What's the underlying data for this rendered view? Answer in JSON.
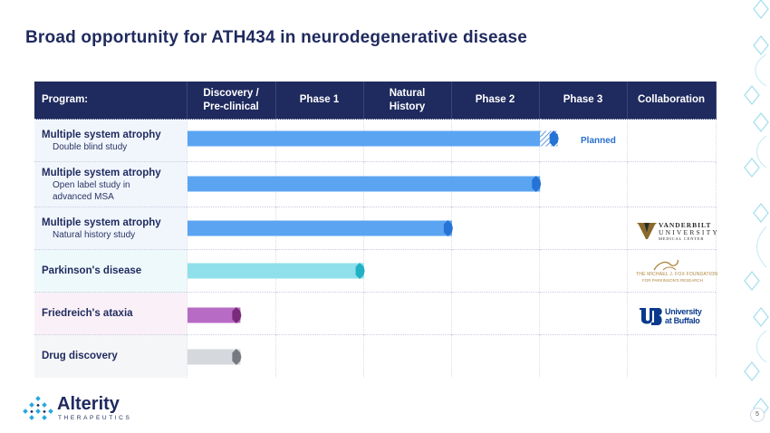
{
  "title": "Broad opportunity for ATH434 in neurodegenerative disease",
  "header": {
    "program": "Program:",
    "discovery_l1": "Discovery /",
    "discovery_l2": "Pre-clinical",
    "phase1": "Phase 1",
    "natural_l1": "Natural",
    "natural_l2": "History",
    "phase2": "Phase 2",
    "phase3": "Phase 3",
    "collaboration": "Collaboration"
  },
  "programs": [
    {
      "name": "Multiple system atrophy",
      "sub1": "Double blind study",
      "sub2": "",
      "progress_phase": 4.2,
      "color": "#5ba4f2",
      "cap": "#2673d6",
      "planned": true
    },
    {
      "name": "Multiple system atrophy",
      "sub1": "Open label study in",
      "sub2": "advanced MSA",
      "progress_phase": 4.0,
      "color": "#5ba4f2",
      "cap": "#2673d6",
      "planned": false
    },
    {
      "name": "Multiple system atrophy",
      "sub1": "Natural history study",
      "sub2": "",
      "progress_phase": 3.0,
      "color": "#5ba4f2",
      "cap": "#2673d6",
      "planned": false
    },
    {
      "name": "Parkinson's disease",
      "sub1": "",
      "sub2": "",
      "progress_phase": 2.0,
      "color": "#8fe0ea",
      "cap": "#22b0c4",
      "planned": false
    },
    {
      "name": "Friedreich's ataxia",
      "sub1": "",
      "sub2": "",
      "progress_phase": 0.6,
      "color": "#b86bc4",
      "cap": "#7a2a7a",
      "planned": false
    },
    {
      "name": "Drug discovery",
      "sub1": "",
      "sub2": "",
      "progress_phase": 0.6,
      "color": "#d5d8dc",
      "cap": "#767a80",
      "planned": false
    }
  ],
  "planned_label": "Planned",
  "collaborators": {
    "vanderbilt_l1": "VANDERBILT",
    "vanderbilt_l2": "UNIVERSITY",
    "vanderbilt_l3": "MEDICAL CENTER",
    "mjff_l1": "THE MICHAEL J. FOX FOUNDATION",
    "mjff_l2": "FOR PARKINSON'S RESEARCH",
    "ub_l1": "University",
    "ub_l2": "at Buffalo"
  },
  "brand": {
    "name": "Alterity",
    "tagline": "THERAPEUTICS",
    "accent": "#2aa7e0"
  },
  "page_number": "5"
}
